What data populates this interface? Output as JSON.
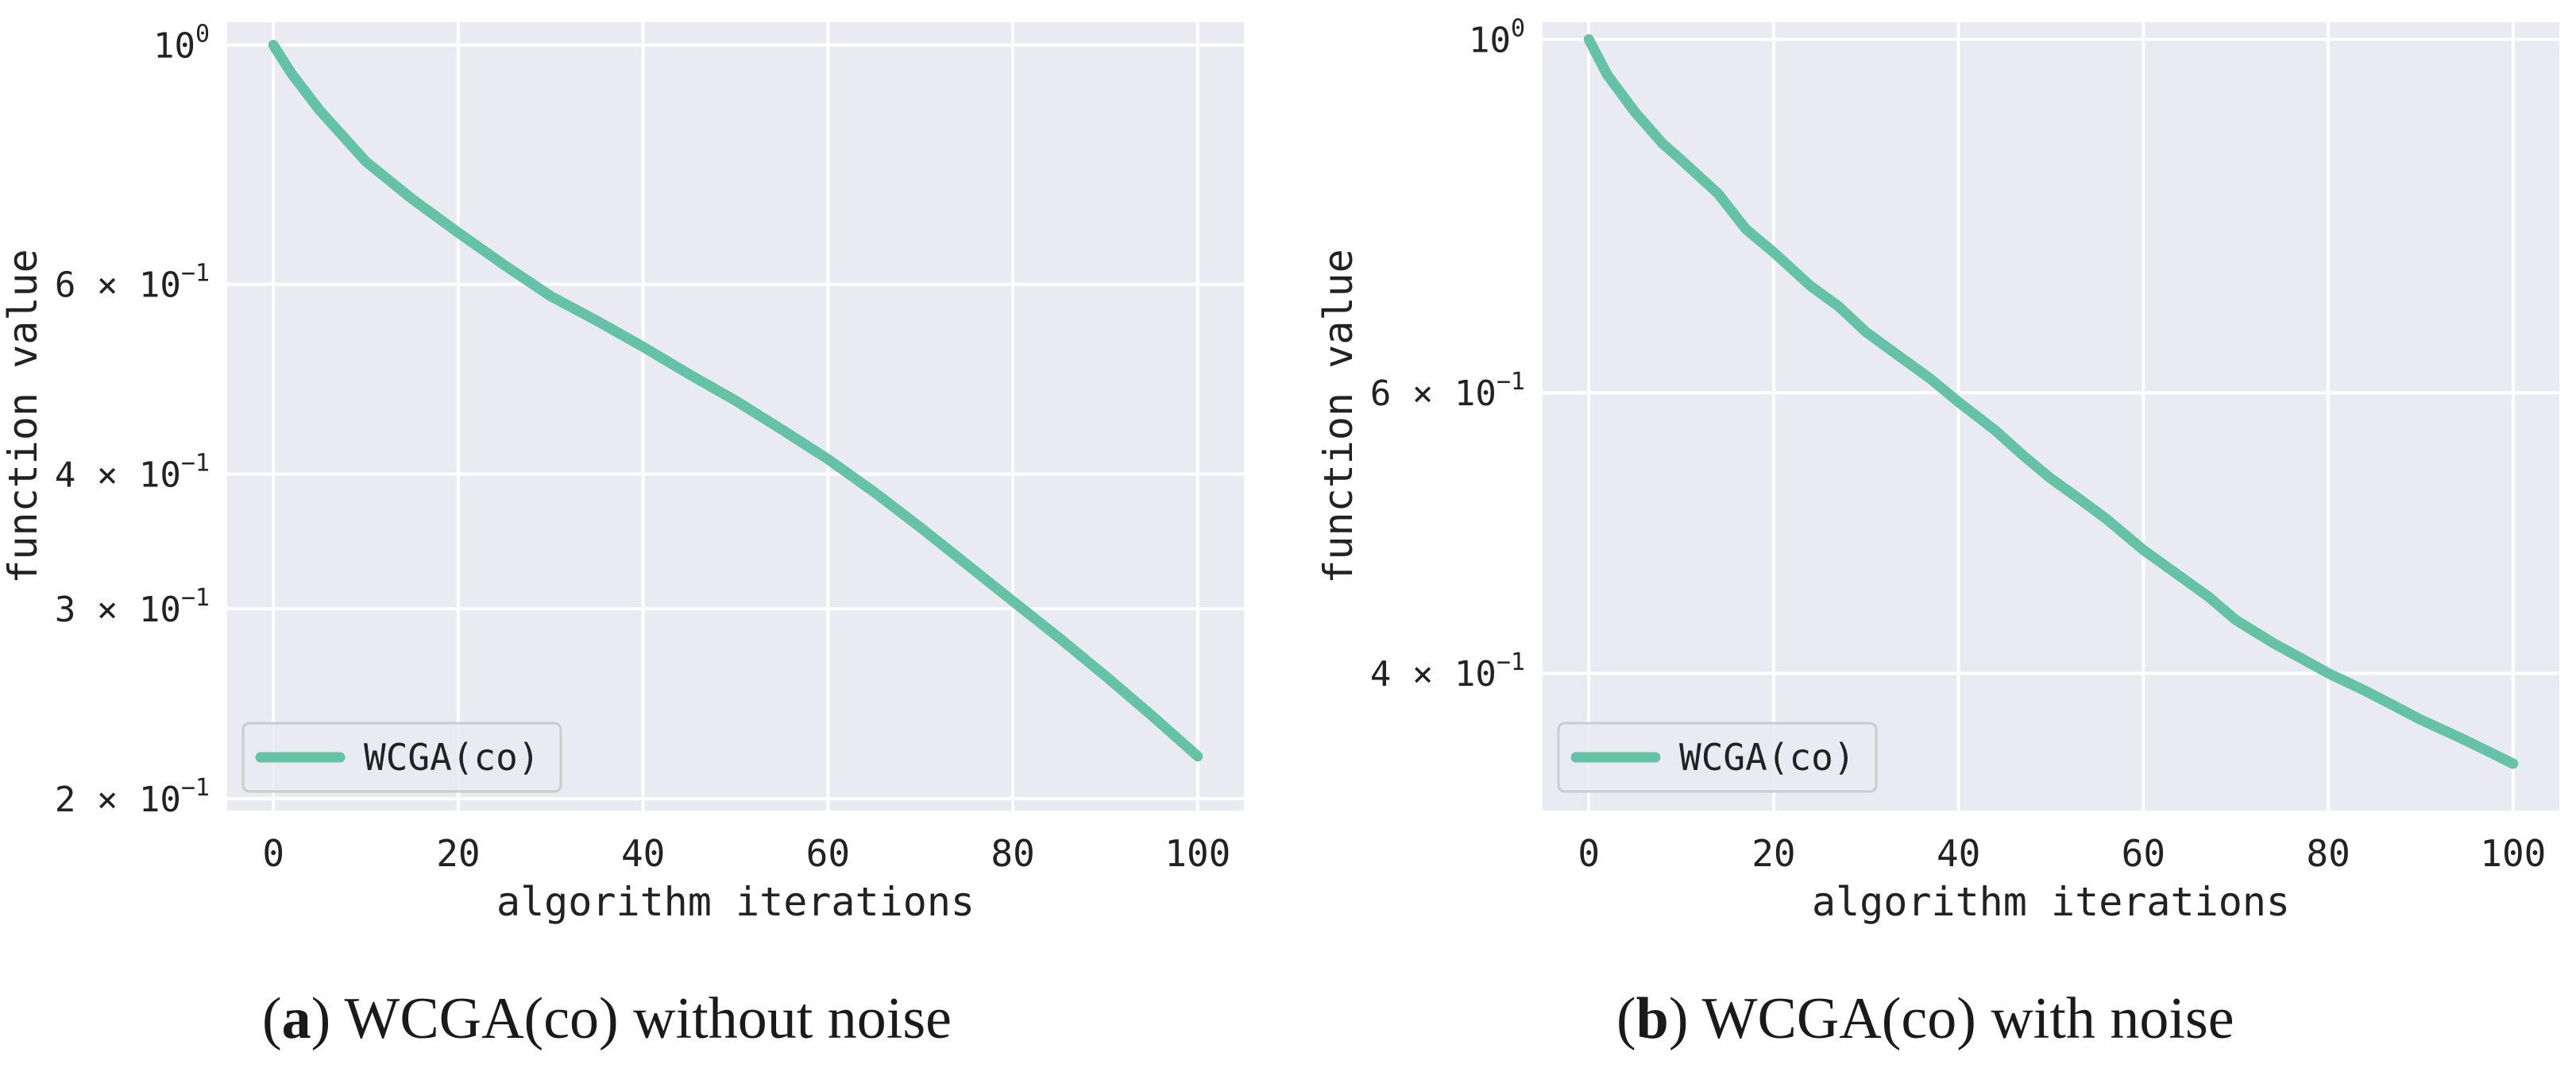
{
  "chart_data": [
    {
      "type": "line",
      "panel_label": "a",
      "caption": "WCGA(co) without noise",
      "xlabel": "algorithm iterations",
      "ylabel": "function value",
      "yscale": "log",
      "xlim": [
        -5,
        105
      ],
      "ylim": [
        0.195,
        1.05
      ],
      "grid": true,
      "background": "#EAEAF2",
      "legend_loc": "lower left",
      "x_ticks": [
        0,
        20,
        40,
        60,
        80,
        100
      ],
      "x_tick_labels": [
        "0",
        "20",
        "40",
        "60",
        "80",
        "100"
      ],
      "y_ticks": [
        1.0,
        0.6,
        0.4,
        0.3,
        0.2
      ],
      "y_tick_labels": [
        {
          "mant": "",
          "base": "10",
          "exp": "0"
        },
        {
          "mant": "6 × ",
          "base": "10",
          "exp": "−1"
        },
        {
          "mant": "4 × ",
          "base": "10",
          "exp": "−1"
        },
        {
          "mant": "3 × ",
          "base": "10",
          "exp": "−1"
        },
        {
          "mant": "2 × ",
          "base": "10",
          "exp": "−1"
        }
      ],
      "series": [
        {
          "name": "WCGA(co)",
          "color": "#66C2A5",
          "x": [
            0,
            2,
            5,
            10,
            15,
            20,
            25,
            30,
            35,
            40,
            45,
            50,
            55,
            60,
            65,
            70,
            75,
            80,
            85,
            90,
            95,
            100
          ],
          "y": [
            1.0,
            0.94,
            0.87,
            0.78,
            0.72,
            0.67,
            0.625,
            0.585,
            0.555,
            0.525,
            0.495,
            0.468,
            0.44,
            0.413,
            0.385,
            0.357,
            0.33,
            0.305,
            0.282,
            0.26,
            0.239,
            0.219
          ]
        }
      ]
    },
    {
      "type": "line",
      "panel_label": "b",
      "caption": "WCGA(co) with noise",
      "xlabel": "algorithm iterations",
      "ylabel": "function value",
      "yscale": "log",
      "xlim": [
        -5,
        105
      ],
      "ylim": [
        0.328,
        1.025
      ],
      "grid": true,
      "background": "#EAEAF2",
      "legend_loc": "lower left",
      "x_ticks": [
        0,
        20,
        40,
        60,
        80,
        100
      ],
      "x_tick_labels": [
        "0",
        "20",
        "40",
        "60",
        "80",
        "100"
      ],
      "y_ticks": [
        1.0,
        0.6,
        0.4
      ],
      "y_tick_labels": [
        {
          "mant": "",
          "base": "10",
          "exp": "0"
        },
        {
          "mant": "6 × ",
          "base": "10",
          "exp": "−1"
        },
        {
          "mant": "4 × ",
          "base": "10",
          "exp": "−1"
        }
      ],
      "series": [
        {
          "name": "WCGA(co)",
          "color": "#66C2A5",
          "x": [
            0,
            2,
            5,
            8,
            10,
            14,
            17,
            20,
            24,
            27,
            30,
            34,
            37,
            40,
            44,
            47,
            50,
            53,
            56,
            60,
            64,
            67,
            70,
            74,
            77,
            80,
            84,
            87,
            90,
            94,
            97,
            100
          ],
          "y": [
            1.0,
            0.95,
            0.9,
            0.86,
            0.84,
            0.8,
            0.76,
            0.735,
            0.7,
            0.68,
            0.655,
            0.63,
            0.612,
            0.592,
            0.568,
            0.548,
            0.53,
            0.515,
            0.5,
            0.478,
            0.46,
            0.447,
            0.432,
            0.418,
            0.409,
            0.4,
            0.39,
            0.382,
            0.374,
            0.365,
            0.358,
            0.351
          ]
        }
      ]
    }
  ]
}
